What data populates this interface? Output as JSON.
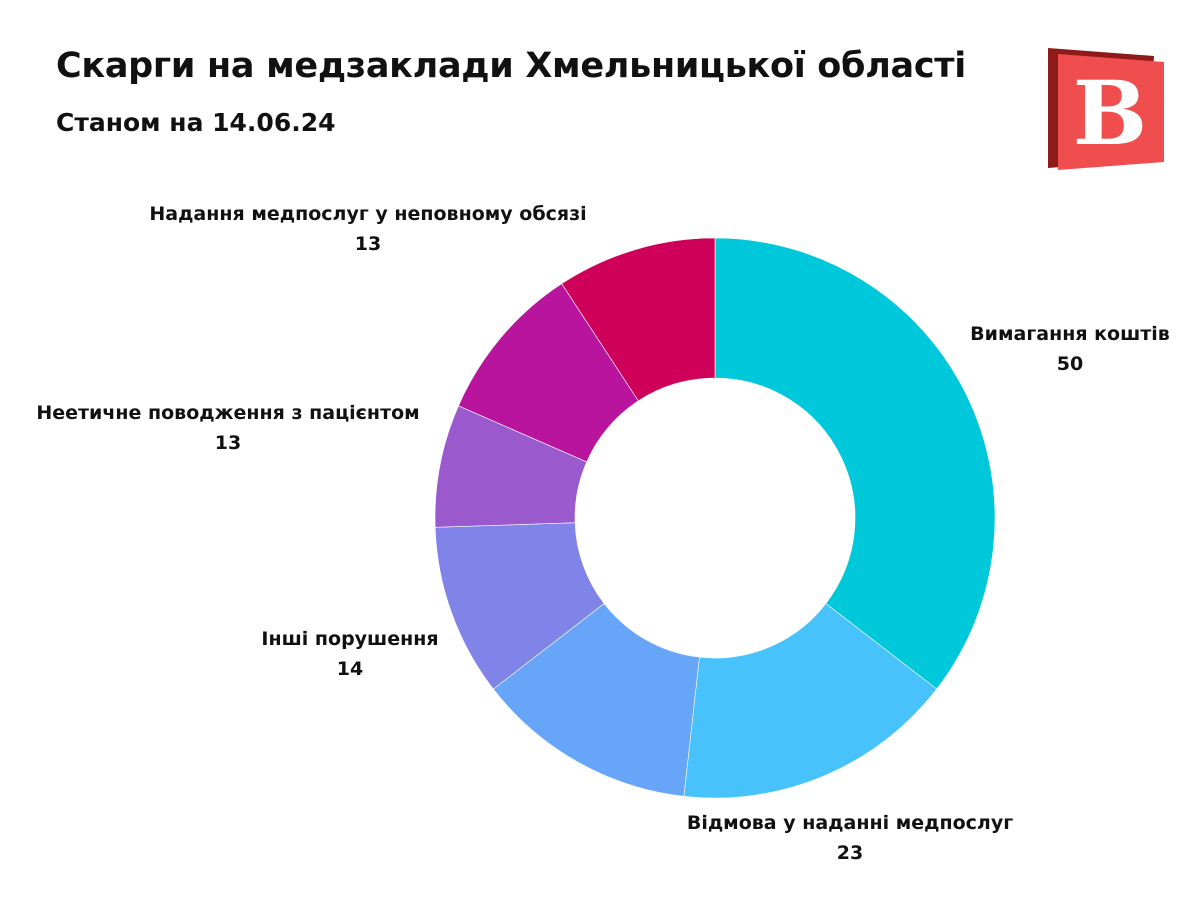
{
  "header": {
    "title": "Скарги на медзаклади Хмельницької області",
    "subtitle": "Станом на 14.06.24"
  },
  "logo": {
    "letter": "В",
    "color": "#f04e4e",
    "shade": "#8e1a1a"
  },
  "chart_data": {
    "type": "pie",
    "style": "donut",
    "title": "Скарги на медзаклади Хмельницької області",
    "subtitle": "Станом на 14.06.24",
    "slices": [
      {
        "label": "Вимагання коштів",
        "value": 50,
        "color": "#00c8db",
        "show_label": true
      },
      {
        "label": "Відмова у наданні медпослуг",
        "value": 23,
        "color": "#48c2fb",
        "show_label": true
      },
      {
        "label": "",
        "value": 18,
        "color": "#66a5f8",
        "show_label": false
      },
      {
        "label": "Інші порушення",
        "value": 14,
        "color": "#8083e8",
        "show_label": true
      },
      {
        "label": "",
        "value": 10,
        "color": "#9a5ace",
        "show_label": false
      },
      {
        "label": "Неетичне поводження з пацієнтом",
        "value": 13,
        "color": "#b8149e",
        "show_label": true
      },
      {
        "label": "Надання медпослуг у неповному обсязі",
        "value": 13,
        "color": "#cf005a",
        "show_label": true
      }
    ]
  }
}
